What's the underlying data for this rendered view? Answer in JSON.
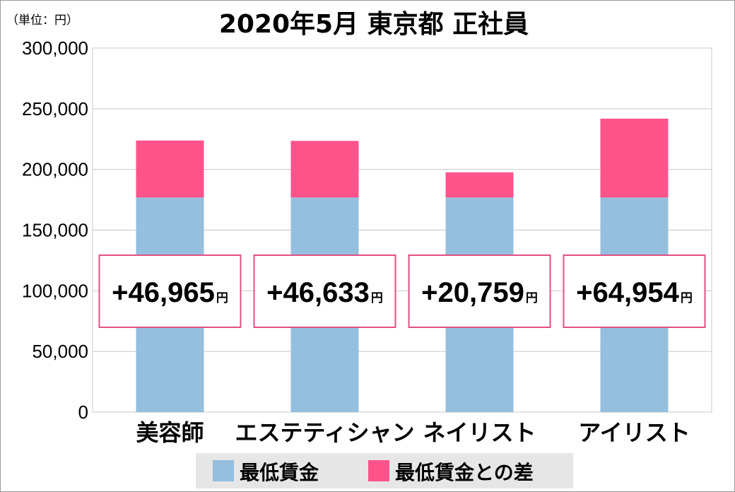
{
  "unit_label": "（単位：円）",
  "title": "2020年5月  東京都  正社員",
  "callout_unit": "円",
  "colors": {
    "base": "#94bfde",
    "diff": "#ff538b",
    "callout_border": "#e24f86",
    "grid": "#c8c8c8",
    "legend_bg": "#e6e6e6"
  },
  "chart_data": {
    "type": "bar",
    "stacked": true,
    "title": "2020年5月  東京都  正社員",
    "ylabel": "（単位：円）",
    "ylim": [
      0,
      300000
    ],
    "yticks": [
      0,
      50000,
      100000,
      150000,
      200000,
      250000,
      300000
    ],
    "ytick_labels": [
      "0",
      "50,000",
      "100,000",
      "150,000",
      "200,000",
      "250,000",
      "300,000"
    ],
    "grid": true,
    "legend_position": "bottom",
    "categories": [
      "美容師",
      "エステティシャン",
      "ネイリスト",
      "アイリスト"
    ],
    "series": [
      {
        "name": "最低賃金",
        "values": [
          176860,
          176860,
          176860,
          176860
        ]
      },
      {
        "name": "最低賃金との差",
        "values": [
          46965,
          46633,
          20759,
          64954
        ]
      }
    ],
    "annotations": [
      "+46,965",
      "+46,633",
      "+20,759",
      "+64,954"
    ]
  }
}
